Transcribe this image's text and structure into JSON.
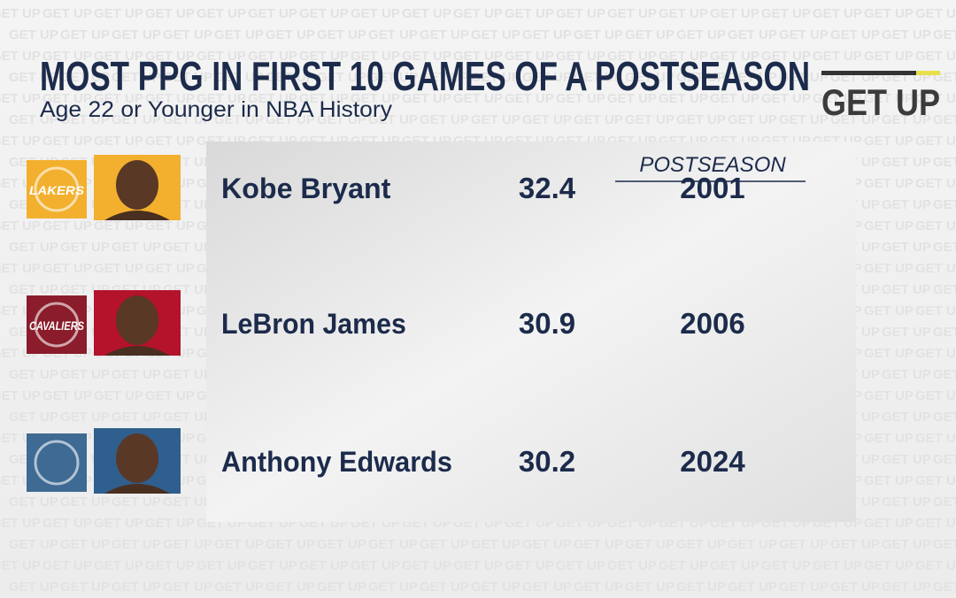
{
  "header": {
    "title": "MOST PPG IN FIRST 10 GAMES OF A POSTSEASON",
    "subtitle": "Age 22 or Younger in NBA History"
  },
  "brand": "GET UP",
  "table": {
    "column_header": "POSTSEASON",
    "rows": [
      {
        "team": "LAKERS",
        "team_color": "#f2b02e",
        "photo_color": "#f2b02e",
        "name": "Kobe Bryant",
        "ppg": 32.4,
        "season": 2001
      },
      {
        "team": "CAVALIERS",
        "team_color": "#8a1c2b",
        "photo_color": "#b5122b",
        "name": "LeBron James",
        "ppg": 30.9,
        "season": 2006
      },
      {
        "team_color": "#3e6a93",
        "photo_color": "#2f5f8e",
        "name": "Anthony Edwards",
        "ppg": 30.2,
        "season": 2024
      }
    ]
  }
}
